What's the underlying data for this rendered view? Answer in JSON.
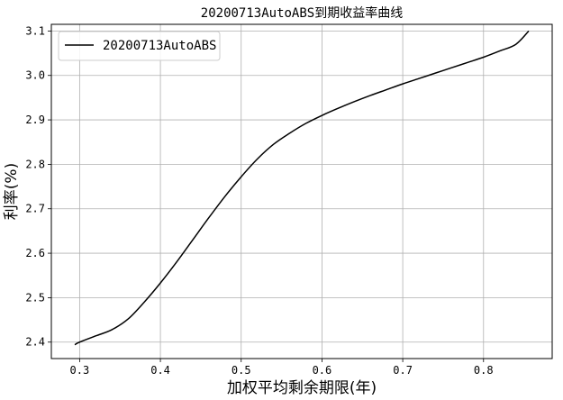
{
  "chart_data": {
    "type": "line",
    "title": "20200713AutoABS到期收益率曲线",
    "xlabel": "加权平均剩余期限(年)",
    "ylabel": "利率(%)",
    "xlim": [
      0.265,
      0.885
    ],
    "ylim": [
      2.363,
      3.115
    ],
    "xticks": [
      0.3,
      0.4,
      0.5,
      0.6,
      0.7,
      0.8
    ],
    "xtick_labels": [
      "0.3",
      "0.4",
      "0.5",
      "0.6",
      "0.7",
      "0.8"
    ],
    "yticks": [
      2.4,
      2.5,
      2.6,
      2.7,
      2.8,
      2.9,
      3.0,
      3.1
    ],
    "ytick_labels": [
      "2.4",
      "2.5",
      "2.6",
      "2.7",
      "2.8",
      "2.9",
      "3.0",
      "3.1"
    ],
    "grid": true,
    "legend_position": "top-left",
    "series": [
      {
        "name": "20200713AutoABS",
        "color": "#000000",
        "x": [
          0.294,
          0.3,
          0.32,
          0.34,
          0.36,
          0.38,
          0.4,
          0.42,
          0.44,
          0.46,
          0.48,
          0.5,
          0.52,
          0.54,
          0.56,
          0.58,
          0.6,
          0.62,
          0.64,
          0.66,
          0.68,
          0.7,
          0.72,
          0.74,
          0.76,
          0.78,
          0.8,
          0.82,
          0.84,
          0.856
        ],
        "values": [
          2.394,
          2.4,
          2.414,
          2.428,
          2.452,
          2.49,
          2.533,
          2.58,
          2.63,
          2.68,
          2.728,
          2.772,
          2.812,
          2.845,
          2.87,
          2.892,
          2.91,
          2.926,
          2.941,
          2.955,
          2.968,
          2.981,
          2.993,
          3.005,
          3.017,
          3.029,
          3.041,
          3.055,
          3.07,
          3.1
        ]
      }
    ]
  }
}
